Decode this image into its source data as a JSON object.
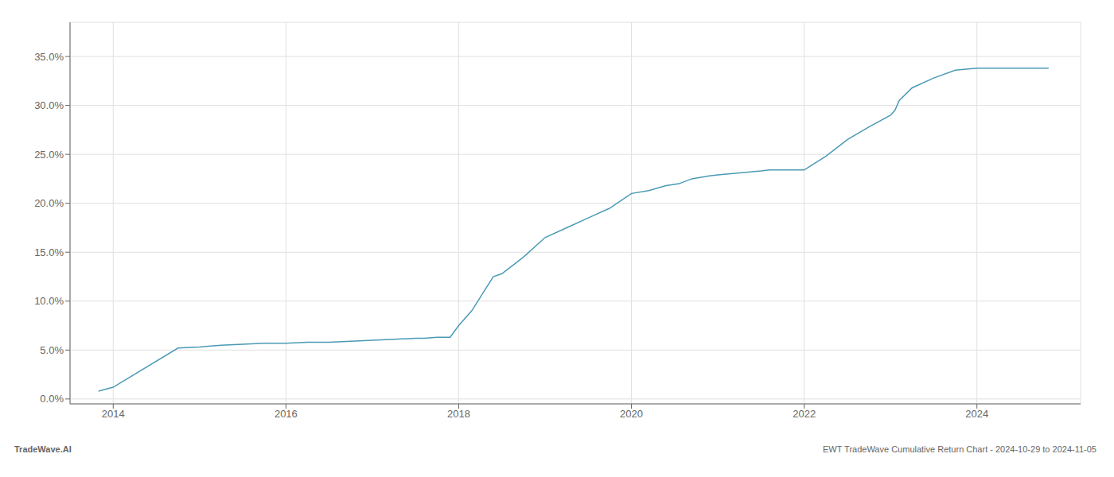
{
  "chart_data": {
    "type": "line",
    "x": [
      2013.83,
      2014.0,
      2014.75,
      2015.0,
      2015.1,
      2015.25,
      2015.5,
      2015.75,
      2016.0,
      2016.25,
      2016.5,
      2016.75,
      2017.0,
      2017.25,
      2017.5,
      2017.6,
      2017.75,
      2017.9,
      2018.0,
      2018.15,
      2018.4,
      2018.5,
      2018.75,
      2019.0,
      2019.25,
      2019.5,
      2019.75,
      2020.0,
      2020.2,
      2020.4,
      2020.55,
      2020.7,
      2020.9,
      2021.0,
      2021.25,
      2021.5,
      2021.6,
      2021.75,
      2022.0,
      2022.25,
      2022.5,
      2022.75,
      2023.0,
      2023.05,
      2023.1,
      2023.25,
      2023.5,
      2023.75,
      2024.0,
      2024.5,
      2024.83
    ],
    "values": [
      0.008,
      0.012,
      0.052,
      0.053,
      0.054,
      0.055,
      0.056,
      0.057,
      0.057,
      0.058,
      0.058,
      0.059,
      0.06,
      0.061,
      0.062,
      0.062,
      0.063,
      0.063,
      0.075,
      0.09,
      0.125,
      0.128,
      0.145,
      0.165,
      0.175,
      0.185,
      0.195,
      0.21,
      0.213,
      0.218,
      0.22,
      0.225,
      0.228,
      0.229,
      0.231,
      0.233,
      0.234,
      0.234,
      0.234,
      0.248,
      0.265,
      0.278,
      0.29,
      0.295,
      0.305,
      0.318,
      0.328,
      0.336,
      0.338,
      0.338,
      0.338
    ],
    "color": "#4a9ab5",
    "xlim": [
      2013.5,
      2025.2
    ],
    "ylim": [
      -0.005,
      0.385
    ],
    "xticks": [
      2014,
      2016,
      2018,
      2020,
      2022,
      2024
    ],
    "yticks": [
      {
        "value": 0.0,
        "label": "0.0%"
      },
      {
        "value": 0.05,
        "label": "5.0%"
      },
      {
        "value": 0.1,
        "label": "10.0%"
      },
      {
        "value": 0.15,
        "label": "15.0%"
      },
      {
        "value": 0.2,
        "label": "20.0%"
      },
      {
        "value": 0.25,
        "label": "25.0%"
      },
      {
        "value": 0.3,
        "label": "30.0%"
      },
      {
        "value": 0.35,
        "label": "35.0%"
      }
    ],
    "grid": true,
    "annotations": [
      "TradeWave.AI",
      "EWT TradeWave Cumulative Return Chart - 2024-10-29 to 2024-11-05"
    ]
  }
}
